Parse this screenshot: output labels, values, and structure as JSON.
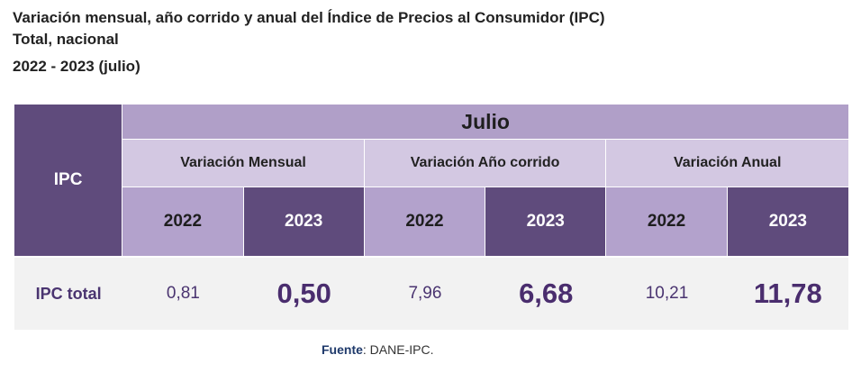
{
  "title": {
    "line1": "Variación mensual, año corrido y anual del Índice de Precios al Consumidor (IPC)",
    "line2": "Total, nacional",
    "line3": "2022 - 2023 (julio)"
  },
  "table": {
    "row_header": "IPC",
    "month": "Julio",
    "groups": [
      {
        "label": "Variación Mensual",
        "years": [
          "2022",
          "2023"
        ],
        "values": [
          "0,81",
          "0,50"
        ]
      },
      {
        "label": "Variación Año corrido",
        "years": [
          "2022",
          "2023"
        ],
        "values": [
          "7,96",
          "6,68"
        ]
      },
      {
        "label": "Variación Anual",
        "years": [
          "2022",
          "2023"
        ],
        "values": [
          "10,21",
          "11,78"
        ]
      }
    ],
    "row_label": "IPC total"
  },
  "source": {
    "label": "Fuente",
    "separator": ":",
    "text": " DANE-IPC."
  },
  "colors": {
    "dark_purple": "#5f4b7c",
    "mid_purple": "#b09fc8",
    "light_purple": "#d3c8e2",
    "row_bg": "#f2f2f2",
    "value_text": "#4a2d6e"
  }
}
